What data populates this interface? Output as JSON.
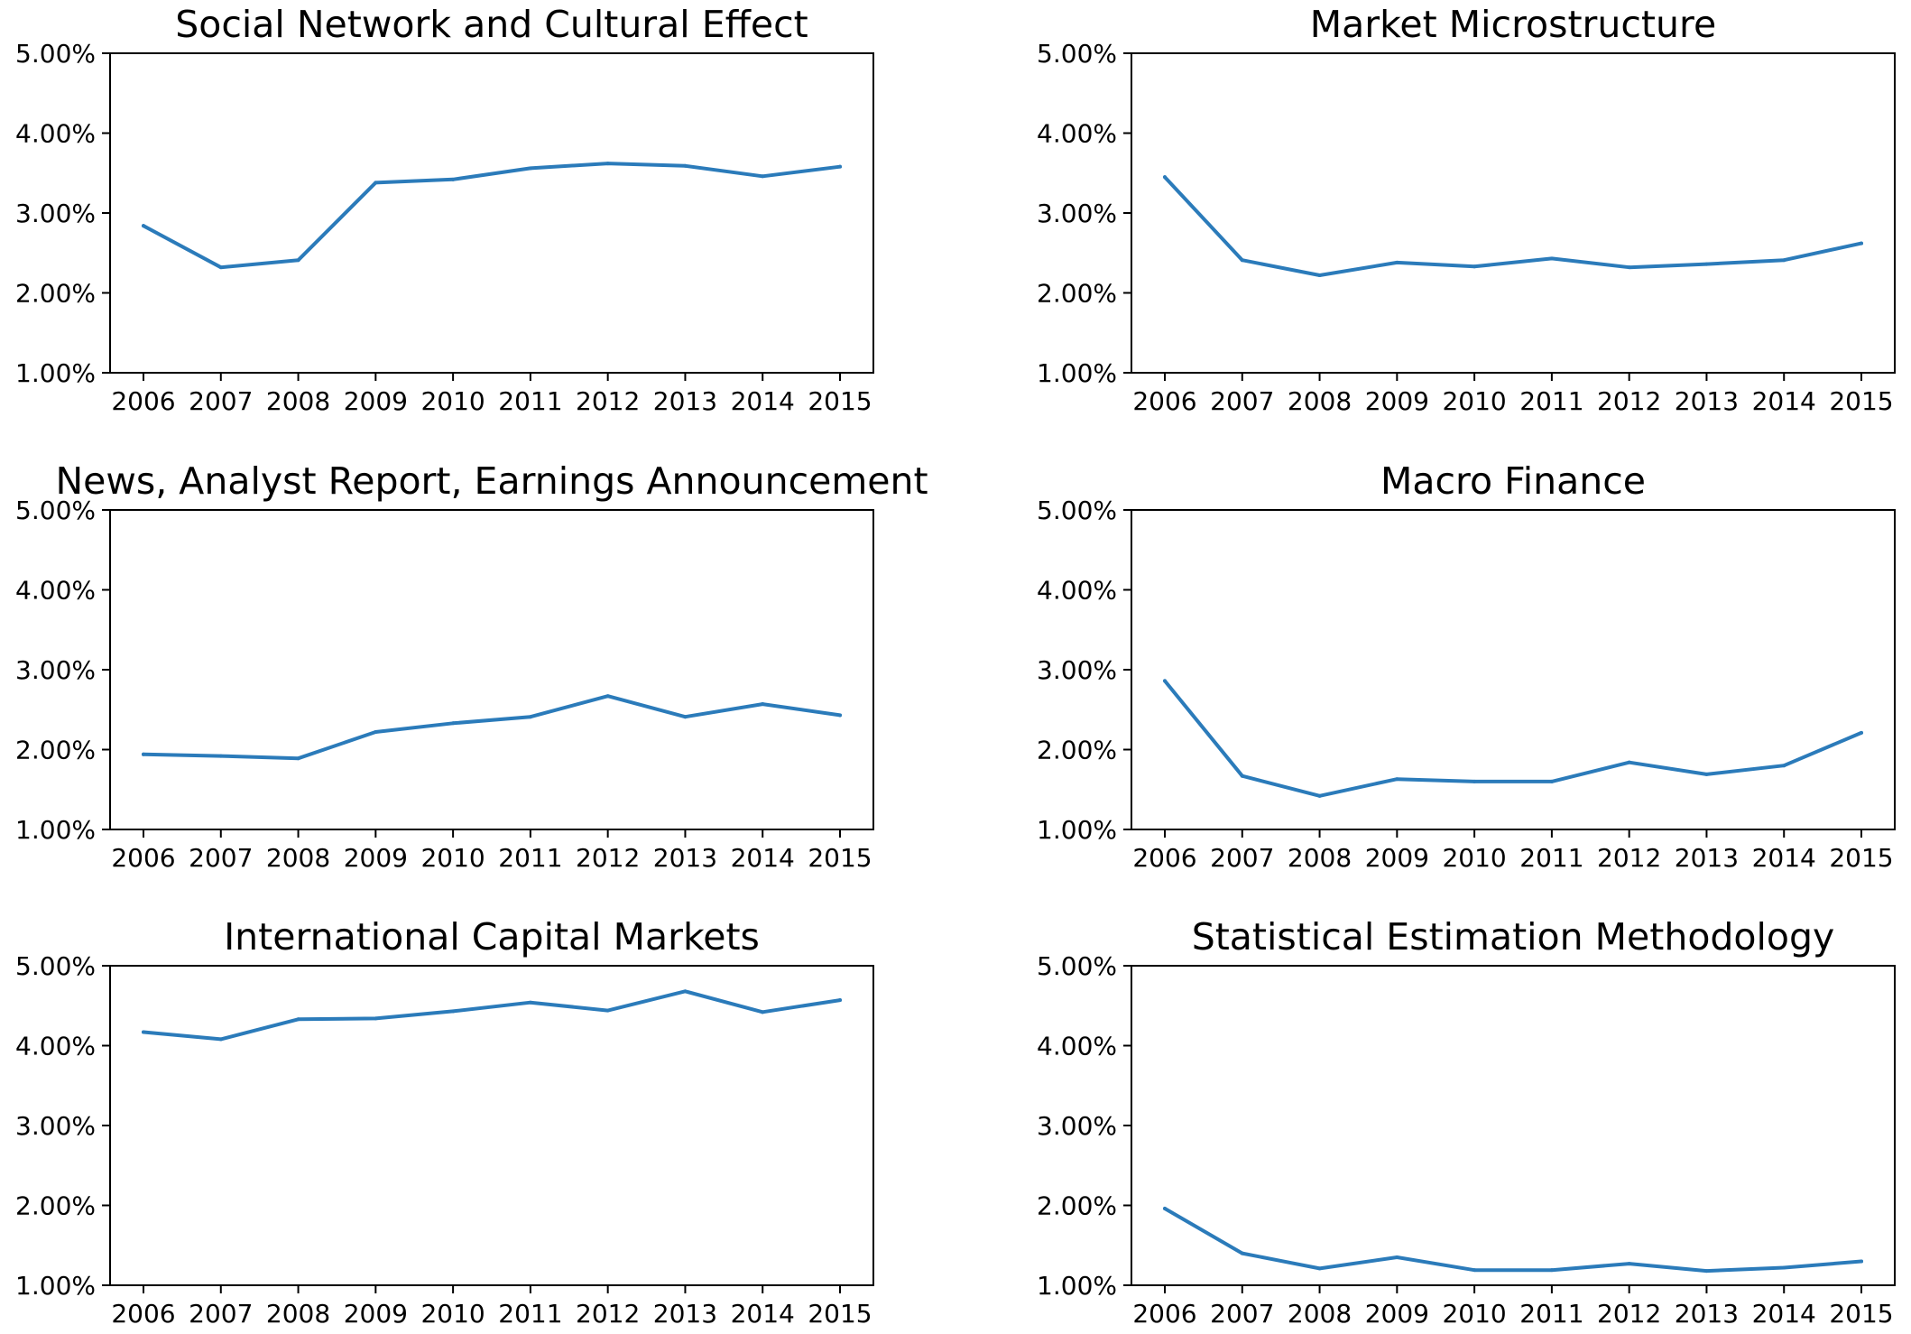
{
  "chart_data": [
    {
      "type": "line",
      "title": "Social Network and Cultural Effect",
      "x": [
        "2006",
        "2007",
        "2008",
        "2009",
        "2010",
        "2011",
        "2012",
        "2013",
        "2014",
        "2015"
      ],
      "y_ticks": [
        "1.00%",
        "2.00%",
        "3.00%",
        "4.00%",
        "5.00%"
      ],
      "ylim": [
        1.0,
        5.0
      ],
      "grid": false,
      "series": [
        {
          "values": [
            2.84,
            2.32,
            2.41,
            3.38,
            3.42,
            3.56,
            3.62,
            3.59,
            3.46,
            3.58
          ]
        }
      ]
    },
    {
      "type": "line",
      "title": "Market Microstructure",
      "x": [
        "2006",
        "2007",
        "2008",
        "2009",
        "2010",
        "2011",
        "2012",
        "2013",
        "2014",
        "2015"
      ],
      "y_ticks": [
        "1.00%",
        "2.00%",
        "3.00%",
        "4.00%",
        "5.00%"
      ],
      "ylim": [
        1.0,
        5.0
      ],
      "grid": false,
      "series": [
        {
          "values": [
            3.45,
            2.41,
            2.22,
            2.38,
            2.33,
            2.43,
            2.32,
            2.36,
            2.41,
            2.62
          ]
        }
      ]
    },
    {
      "type": "line",
      "title": "News, Analyst Report, Earnings Announcement",
      "x": [
        "2006",
        "2007",
        "2008",
        "2009",
        "2010",
        "2011",
        "2012",
        "2013",
        "2014",
        "2015"
      ],
      "y_ticks": [
        "1.00%",
        "2.00%",
        "3.00%",
        "4.00%",
        "5.00%"
      ],
      "ylim": [
        1.0,
        5.0
      ],
      "grid": false,
      "series": [
        {
          "values": [
            1.94,
            1.92,
            1.89,
            2.22,
            2.33,
            2.41,
            2.67,
            2.41,
            2.57,
            2.43
          ]
        }
      ]
    },
    {
      "type": "line",
      "title": "Macro Finance",
      "x": [
        "2006",
        "2007",
        "2008",
        "2009",
        "2010",
        "2011",
        "2012",
        "2013",
        "2014",
        "2015"
      ],
      "y_ticks": [
        "1.00%",
        "2.00%",
        "3.00%",
        "4.00%",
        "5.00%"
      ],
      "ylim": [
        1.0,
        5.0
      ],
      "grid": false,
      "series": [
        {
          "values": [
            2.86,
            1.67,
            1.42,
            1.63,
            1.6,
            1.6,
            1.84,
            1.69,
            1.8,
            2.21
          ]
        }
      ]
    },
    {
      "type": "line",
      "title": "International Capital Markets",
      "x": [
        "2006",
        "2007",
        "2008",
        "2009",
        "2010",
        "2011",
        "2012",
        "2013",
        "2014",
        "2015"
      ],
      "y_ticks": [
        "1.00%",
        "2.00%",
        "3.00%",
        "4.00%",
        "5.00%"
      ],
      "ylim": [
        1.0,
        5.0
      ],
      "grid": false,
      "series": [
        {
          "values": [
            4.17,
            4.08,
            4.33,
            4.34,
            4.43,
            4.54,
            4.44,
            4.68,
            4.42,
            4.57
          ]
        }
      ]
    },
    {
      "type": "line",
      "title": "Statistical Estimation Methodology",
      "x": [
        "2006",
        "2007",
        "2008",
        "2009",
        "2010",
        "2011",
        "2012",
        "2013",
        "2014",
        "2015"
      ],
      "y_ticks": [
        "1.00%",
        "2.00%",
        "3.00%",
        "4.00%",
        "5.00%"
      ],
      "ylim": [
        1.0,
        5.0
      ],
      "grid": false,
      "series": [
        {
          "values": [
            1.96,
            1.4,
            1.21,
            1.35,
            1.19,
            1.19,
            1.27,
            1.18,
            1.22,
            1.3
          ]
        }
      ]
    }
  ],
  "colors": {
    "line": "#2b7bba",
    "axis": "#000000",
    "background": "#ffffff"
  }
}
